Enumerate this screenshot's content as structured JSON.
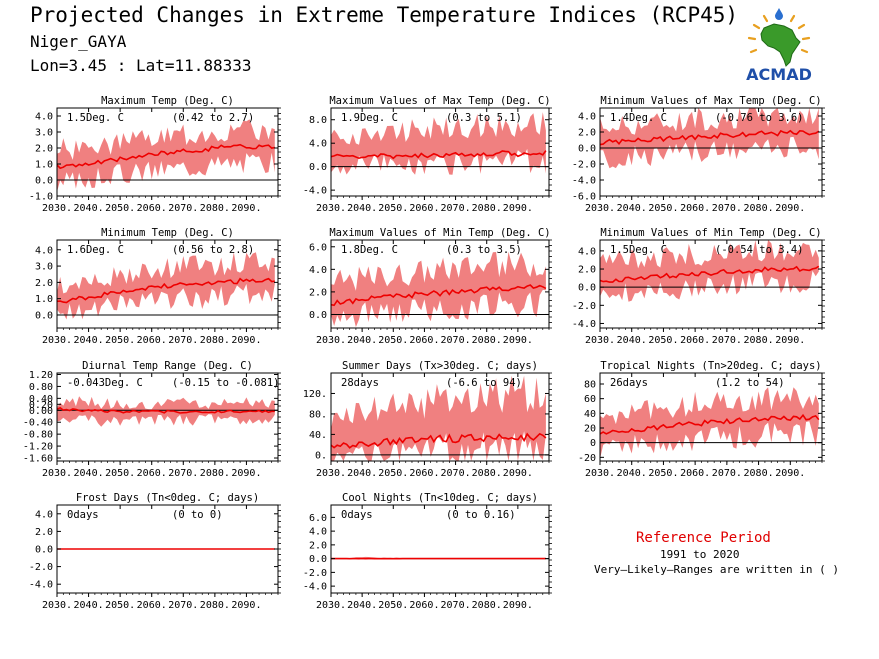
{
  "header": {
    "title": "Projected Changes in Extreme Temperature Indices (RCP45)",
    "station": "Niger_GAYA",
    "coords": "Lon=3.45 : Lat=11.88333"
  },
  "logo": {
    "text": "ACMAD",
    "icon": "africa-map-sun-logo"
  },
  "reference": {
    "title": "Reference Period",
    "years": "1991 to 2020",
    "note": "Very—Likely—Ranges are written in ( )"
  },
  "colors": {
    "band": "#f08080",
    "median": "#ee0000",
    "zero": "#000000",
    "reference": "#e00000"
  },
  "chart_data": [
    {
      "type": "area",
      "title": "Maximum Temp (Deg. C)",
      "summary": "1.5Deg. C",
      "range": "(0.42 to 2.7)",
      "ylim": [
        -1.0,
        4.5
      ],
      "yticks": [
        -1.0,
        0.0,
        1.0,
        2.0,
        3.0,
        4.0
      ],
      "ytick_labels": [
        "-1.0",
        "0.0",
        "1.0",
        "2.0",
        "3.0",
        "4.0"
      ],
      "x": [
        2030,
        2040,
        2050,
        2060,
        2070,
        2080,
        2090,
        2099
      ],
      "median": [
        0.8,
        1.0,
        1.3,
        1.6,
        1.8,
        2.0,
        2.1,
        2.1
      ],
      "lower": [
        -0.3,
        0.1,
        0.4,
        0.6,
        0.8,
        1.0,
        1.1,
        1.1
      ],
      "upper": [
        1.9,
        2.0,
        2.3,
        2.6,
        2.8,
        3.0,
        3.1,
        3.1
      ]
    },
    {
      "type": "area",
      "title": "Maximum Values of Max Temp (Deg. C)",
      "summary": "1.9Deg. C",
      "range": "(0.3 to 5.1)",
      "ylim": [
        -5.0,
        10.0
      ],
      "yticks": [
        -4.0,
        0.0,
        4.0,
        8.0
      ],
      "ytick_labels": [
        "-4.0",
        "0.0",
        "4.0",
        "8.0"
      ],
      "x": [
        2030,
        2040,
        2050,
        2060,
        2070,
        2080,
        2090,
        2099
      ],
      "median": [
        1.7,
        1.7,
        1.8,
        2.0,
        2.1,
        2.2,
        2.2,
        2.3
      ],
      "lower": [
        0.4,
        0.3,
        0.5,
        0.6,
        0.7,
        0.8,
        0.8,
        0.9
      ],
      "upper": [
        5.0,
        5.4,
        6.0,
        6.5,
        6.8,
        7.0,
        7.2,
        7.2
      ]
    },
    {
      "type": "area",
      "title": "Minimum Values of Max Temp (Deg. C)",
      "summary": "1.4Deg. C",
      "range": "(-0.76 to 3.6)",
      "ylim": [
        -6.0,
        5.0
      ],
      "yticks": [
        -6.0,
        -4.0,
        -2.0,
        0.0,
        2.0,
        4.0
      ],
      "ytick_labels": [
        "-6.0",
        "-4.0",
        "-2.0",
        "0.0",
        "2.0",
        "4.0"
      ],
      "x": [
        2030,
        2040,
        2050,
        2060,
        2070,
        2080,
        2090,
        2099
      ],
      "median": [
        0.7,
        0.9,
        1.1,
        1.4,
        1.6,
        1.8,
        1.9,
        2.0
      ],
      "lower": [
        -1.5,
        -1.2,
        -0.9,
        -0.6,
        -0.4,
        -0.2,
        0.0,
        0.0
      ],
      "upper": [
        2.7,
        3.0,
        3.3,
        3.6,
        3.8,
        4.0,
        4.1,
        4.1
      ]
    },
    {
      "type": "area",
      "title": "Minimum Temp (Deg. C)",
      "summary": "1.6Deg. C",
      "range": "(0.56 to 2.8)",
      "ylim": [
        -0.8,
        4.6
      ],
      "yticks": [
        0.0,
        1.0,
        2.0,
        3.0,
        4.0
      ],
      "ytick_labels": [
        "0.0",
        "1.0",
        "2.0",
        "3.0",
        "4.0"
      ],
      "x": [
        2030,
        2040,
        2050,
        2060,
        2070,
        2080,
        2090,
        2099
      ],
      "median": [
        0.8,
        1.1,
        1.4,
        1.7,
        1.9,
        2.0,
        2.1,
        2.1
      ],
      "lower": [
        0.0,
        0.3,
        0.6,
        0.8,
        1.0,
        1.1,
        1.2,
        1.2
      ],
      "upper": [
        1.8,
        2.1,
        2.4,
        2.8,
        3.0,
        3.1,
        3.2,
        3.2
      ]
    },
    {
      "type": "area",
      "title": "Maximum Values of Min Temp (Deg. C)",
      "summary": "1.8Deg. C",
      "range": "(0.3 to 3.5)",
      "ylim": [
        -1.2,
        6.6
      ],
      "yticks": [
        0.0,
        2.0,
        4.0,
        6.0
      ],
      "ytick_labels": [
        "0.0",
        "2.0",
        "4.0",
        "6.0"
      ],
      "x": [
        2030,
        2040,
        2050,
        2060,
        2070,
        2080,
        2090,
        2099
      ],
      "median": [
        1.0,
        1.3,
        1.6,
        1.8,
        2.0,
        2.2,
        2.4,
        2.5
      ],
      "lower": [
        -0.3,
        0.0,
        0.3,
        0.5,
        0.7,
        0.8,
        0.9,
        1.0
      ],
      "upper": [
        2.8,
        3.2,
        3.5,
        3.8,
        4.1,
        4.3,
        4.4,
        4.5
      ]
    },
    {
      "type": "area",
      "title": "Minimum Values of Min Temp (Deg. C)",
      "summary": "1.5Deg. C",
      "range": "(-0.54 to 3.4)",
      "ylim": [
        -4.5,
        5.2
      ],
      "yticks": [
        -4.0,
        -2.0,
        0.0,
        2.0,
        4.0
      ],
      "ytick_labels": [
        "-4.0",
        "-2.0",
        "0.0",
        "2.0",
        "4.0"
      ],
      "x": [
        2030,
        2040,
        2050,
        2060,
        2070,
        2080,
        2090,
        2099
      ],
      "median": [
        0.6,
        0.9,
        1.2,
        1.5,
        1.7,
        1.9,
        2.0,
        2.1
      ],
      "lower": [
        -1.0,
        -0.6,
        -0.3,
        0.0,
        0.2,
        0.4,
        0.5,
        0.6
      ],
      "upper": [
        2.6,
        3.0,
        3.3,
        3.6,
        3.8,
        4.0,
        4.1,
        4.2
      ]
    },
    {
      "type": "area",
      "title": "Diurnal Temp Range (Deg. C)",
      "summary": "-0.043Deg. C",
      "range": "(-0.15 to -0.081)",
      "ylim": [
        -1.7,
        1.25
      ],
      "yticks": [
        -1.6,
        -1.2,
        -0.8,
        -0.4,
        0.0,
        0.2,
        0.4,
        0.8,
        1.2
      ],
      "ytick_labels": [
        "-1.60",
        "-1.20",
        "-0.80",
        "-0.40",
        "0.00",
        "0.20",
        "0.40",
        "0.80",
        "1.20"
      ],
      "x": [
        2030,
        2040,
        2050,
        2060,
        2070,
        2080,
        2090,
        2099
      ],
      "median": [
        0.05,
        0.0,
        -0.05,
        -0.04,
        -0.05,
        -0.05,
        -0.03,
        -0.04
      ],
      "lower": [
        -0.3,
        -0.35,
        -0.35,
        -0.3,
        -0.35,
        -0.3,
        -0.3,
        -0.3
      ],
      "upper": [
        0.3,
        0.25,
        0.2,
        0.2,
        0.25,
        0.2,
        0.25,
        0.2
      ]
    },
    {
      "type": "area",
      "title": "Summer Days (Tx>30deg. C; days)",
      "summary": "28days",
      "range": "(-6.6 to 94)",
      "ylim": [
        -12,
        160
      ],
      "yticks": [
        0,
        40,
        80,
        120
      ],
      "ytick_labels": [
        "0.",
        "40.",
        "80.",
        "120."
      ],
      "x": [
        2030,
        2040,
        2050,
        2060,
        2070,
        2080,
        2090,
        2099
      ],
      "median": [
        15,
        22,
        26,
        30,
        32,
        34,
        35,
        36
      ],
      "lower": [
        -5,
        0,
        3,
        5,
        6,
        7,
        8,
        8
      ],
      "upper": [
        60,
        80,
        95,
        105,
        112,
        115,
        118,
        118
      ]
    },
    {
      "type": "area",
      "title": "Tropical Nights (Tn>20deg. C; days)",
      "summary": "26days",
      "range": "(1.2 to 54)",
      "ylim": [
        -25,
        95
      ],
      "yticks": [
        -20,
        0,
        20,
        40,
        60,
        80
      ],
      "ytick_labels": [
        "-20",
        "0",
        "20",
        "40",
        "60",
        "80"
      ],
      "x": [
        2030,
        2040,
        2050,
        2060,
        2070,
        2080,
        2090,
        2099
      ],
      "median": [
        12,
        17,
        22,
        26,
        29,
        32,
        34,
        35
      ],
      "lower": [
        -8,
        -3,
        2,
        5,
        8,
        10,
        12,
        12
      ],
      "upper": [
        35,
        42,
        48,
        53,
        57,
        60,
        62,
        62
      ]
    },
    {
      "type": "area",
      "title": "Frost Days (Tn<0deg. C; days)",
      "summary": "0days",
      "range": "(0 to 0)",
      "ylim": [
        -5.0,
        5.0
      ],
      "yticks": [
        -4.0,
        -2.0,
        0.0,
        2.0,
        4.0
      ],
      "ytick_labels": [
        "-4.0",
        "-2.0",
        "0.0",
        "2.0",
        "4.0"
      ],
      "x": [
        2030,
        2040,
        2050,
        2060,
        2070,
        2080,
        2090,
        2099
      ],
      "median": [
        0,
        0,
        0,
        0,
        0,
        0,
        0,
        0
      ],
      "lower": [
        0,
        0,
        0,
        0,
        0,
        0,
        0,
        0
      ],
      "upper": [
        0,
        0,
        0,
        0,
        0,
        0,
        0,
        0
      ]
    },
    {
      "type": "area",
      "title": "Cool Nights (Tn<10deg. C; days)",
      "summary": "0days",
      "range": "(0 to 0.16)",
      "ylim": [
        -5.0,
        7.8
      ],
      "yticks": [
        -4.0,
        -2.0,
        0.0,
        2.0,
        4.0,
        6.0
      ],
      "ytick_labels": [
        "-4.0",
        "-2.0",
        "0.0",
        "2.0",
        "4.0",
        "6.0"
      ],
      "x": [
        2030,
        2040,
        2050,
        2060,
        2070,
        2080,
        2090,
        2099
      ],
      "median": [
        0,
        0,
        0,
        0,
        0,
        0,
        0,
        0
      ],
      "lower": [
        0,
        0,
        0,
        0,
        0,
        0,
        0,
        0
      ],
      "upper": [
        0,
        0.2,
        0.1,
        0,
        0,
        0,
        0,
        0
      ]
    }
  ],
  "x_axis": {
    "ticks": [
      2030,
      2040,
      2050,
      2060,
      2070,
      2080,
      2090
    ],
    "tick_labels": [
      "2030.",
      "2040.",
      "2050.",
      "2060.",
      "2070.",
      "2080.",
      "2090."
    ],
    "xlim": [
      2030,
      2100
    ]
  }
}
